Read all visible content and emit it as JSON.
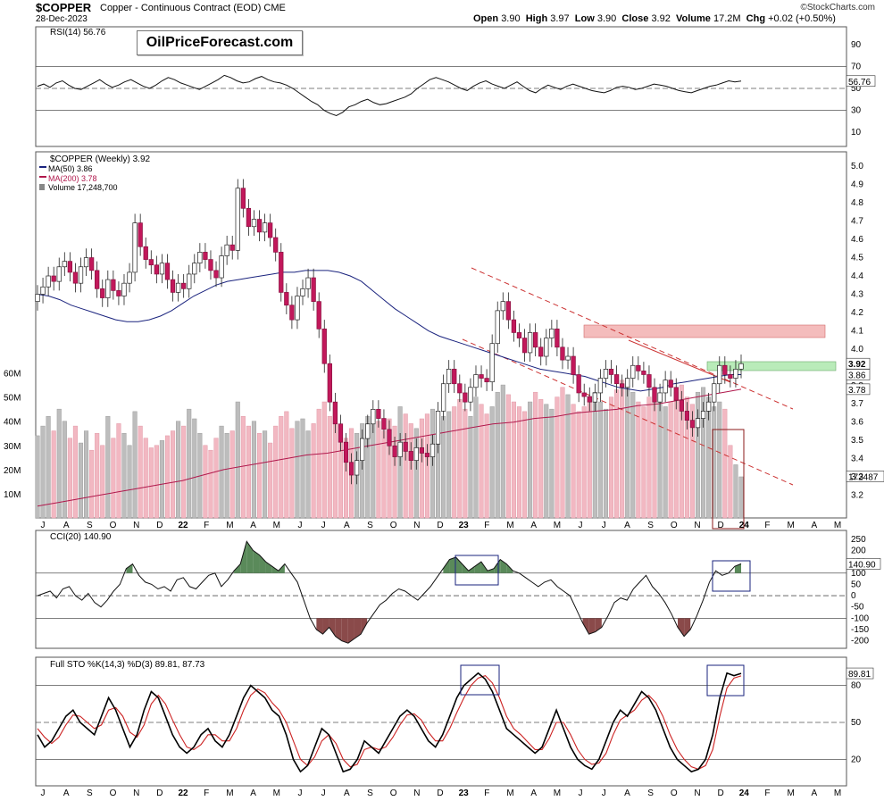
{
  "header": {
    "symbol": "$COPPER",
    "subtitle": "Copper - Continuous Contract (EOD)",
    "exchange": "CME",
    "date": "28-Dec-2023",
    "open_label": "Open",
    "open": "3.90",
    "high_label": "High",
    "high": "3.97",
    "low_label": "Low",
    "low": "3.90",
    "close_label": "Close",
    "close": "3.92",
    "volume_label": "Volume",
    "volume": "17.2M",
    "chg_label": "Chg",
    "chg": "+0.02 (+0.50%)",
    "brand": "©StockCharts.com"
  },
  "watermark": "OilPriceForecast.com",
  "colors": {
    "up": "#ffffff",
    "down": "#c2185b",
    "ma50": "#1a237e",
    "ma200": "#b0184c",
    "vol_up": "#bdbdbd",
    "vol_down": "#f2b8c2",
    "resistance_zone": "#f0a0a0",
    "support_zone": "#a8e6a8",
    "cci_up": "#5a8a5a",
    "cci_down": "#8a4a4a",
    "sto_d": "#cc2222"
  },
  "chart_data": [
    {
      "type": "line",
      "name": "rsi_panel",
      "label": "RSI(14) 56.76",
      "current": "56.76",
      "levels": [
        70,
        50,
        30
      ],
      "ylim": [
        0,
        100
      ],
      "y_ticks": [
        "90",
        "70",
        "50",
        "30",
        "10"
      ],
      "values": [
        52,
        54,
        51,
        55,
        57,
        53,
        50,
        49,
        52,
        55,
        58,
        54,
        51,
        53,
        56,
        58,
        55,
        52,
        50,
        53,
        57,
        60,
        58,
        55,
        53,
        51,
        49,
        52,
        55,
        58,
        62,
        60,
        57,
        55,
        56,
        59,
        61,
        58,
        56,
        55,
        53,
        50,
        46,
        42,
        38,
        35,
        30,
        27,
        25,
        28,
        33,
        35,
        38,
        40,
        37,
        35,
        36,
        38,
        40,
        42,
        45,
        50,
        54,
        58,
        60,
        58,
        56,
        53,
        50,
        48,
        52,
        55,
        57,
        54,
        52,
        50,
        53,
        56,
        52,
        48,
        46,
        50,
        53,
        51,
        49,
        52,
        54,
        52,
        50,
        48,
        47,
        46,
        48,
        51,
        52,
        51,
        49,
        50,
        52,
        54,
        53,
        52,
        50,
        48,
        47,
        46,
        48,
        50,
        52,
        53,
        55,
        57,
        56,
        56.76
      ]
    },
    {
      "type": "candlestick",
      "name": "price_panel",
      "title": "$COPPER (Weekly) 3.92",
      "legend": [
        {
          "label": "MA(50) 3.86",
          "color": "#1a237e"
        },
        {
          "label": "MA(200) 3.78",
          "color": "#b0184c"
        },
        {
          "label": "Volume 17,248,700",
          "color": "#888888"
        }
      ],
      "ylim": [
        3.1,
        5.05
      ],
      "y_ticks": [
        "5.0",
        "4.9",
        "4.8",
        "4.7",
        "4.6",
        "4.5",
        "4.4",
        "4.3",
        "4.2",
        "4.1",
        "4.0",
        "3.9",
        "3.8",
        "3.7",
        "3.6",
        "3.5",
        "3.4",
        "3.3",
        "3.2"
      ],
      "price_tags": [
        {
          "label": "3.92",
          "value": 3.92,
          "bold": true
        },
        {
          "label": "3.86",
          "value": 3.86,
          "bold": false
        },
        {
          "label": "3.78",
          "value": 3.78,
          "bold": false
        }
      ],
      "volume_axis_ticks": [
        "60M",
        "50M",
        "40M",
        "30M",
        "20M",
        "10M"
      ],
      "volume_tag": "172487",
      "volume_ymax": 65,
      "x_labels": [
        "J",
        "A",
        "S",
        "O",
        "N",
        "D",
        "22",
        "F",
        "M",
        "A",
        "M",
        "J",
        "J",
        "A",
        "S",
        "O",
        "N",
        "D",
        "23",
        "F",
        "M",
        "A",
        "M",
        "J",
        "J",
        "A",
        "S",
        "O",
        "N",
        "D",
        "24",
        "F",
        "M",
        "A",
        "M"
      ],
      "closes": [
        4.3,
        4.34,
        4.4,
        4.37,
        4.45,
        4.48,
        4.42,
        4.36,
        4.45,
        4.5,
        4.43,
        4.33,
        4.28,
        4.38,
        4.32,
        4.29,
        4.36,
        4.42,
        4.69,
        4.56,
        4.49,
        4.46,
        4.41,
        4.47,
        4.38,
        4.31,
        4.36,
        4.33,
        4.41,
        4.47,
        4.53,
        4.49,
        4.43,
        4.39,
        4.51,
        4.57,
        4.54,
        4.88,
        4.77,
        4.67,
        4.71,
        4.64,
        4.69,
        4.61,
        4.53,
        4.31,
        4.24,
        4.16,
        4.29,
        4.33,
        4.39,
        4.26,
        4.11,
        3.92,
        3.71,
        3.59,
        3.49,
        3.38,
        3.31,
        3.39,
        3.51,
        3.59,
        3.67,
        3.62,
        3.56,
        3.47,
        3.41,
        3.49,
        3.44,
        3.39,
        3.46,
        3.43,
        3.41,
        3.48,
        3.66,
        3.81,
        3.89,
        3.81,
        3.76,
        3.71,
        3.79,
        3.86,
        3.84,
        3.82,
        4.03,
        4.21,
        4.26,
        4.16,
        4.09,
        4.06,
        3.98,
        4.09,
        4.01,
        3.96,
        4.06,
        4.11,
        4.01,
        3.94,
        3.96,
        3.86,
        3.76,
        3.74,
        3.71,
        3.76,
        3.84,
        3.89,
        3.86,
        3.81,
        3.79,
        3.84,
        3.91,
        3.88,
        3.86,
        3.79,
        3.71,
        3.76,
        3.83,
        3.79,
        3.72,
        3.66,
        3.61,
        3.57,
        3.62,
        3.66,
        3.71,
        3.81,
        3.91,
        3.86,
        3.84,
        3.89,
        3.92
      ],
      "ma50": [
        4.3,
        4.29,
        4.27,
        4.24,
        4.22,
        4.2,
        4.18,
        4.16,
        4.15,
        4.15,
        4.16,
        4.18,
        4.21,
        4.25,
        4.29,
        4.32,
        4.35,
        4.37,
        4.38,
        4.39,
        4.4,
        4.41,
        4.42,
        4.42,
        4.43,
        4.43,
        4.43,
        4.42,
        4.4,
        4.37,
        4.32,
        4.27,
        4.22,
        4.18,
        4.14,
        4.1,
        4.07,
        4.05,
        4.03,
        4.01,
        3.99,
        3.97,
        3.95,
        3.93,
        3.91,
        3.89,
        3.88,
        3.87,
        3.86,
        3.85,
        3.83,
        3.81,
        3.79,
        3.78,
        3.77,
        3.78,
        3.79,
        3.81,
        3.82,
        3.83,
        3.84,
        3.85,
        3.86,
        3.86
      ],
      "ma200": [
        3.14,
        3.16,
        3.18,
        3.2,
        3.22,
        3.24,
        3.26,
        3.28,
        3.31,
        3.34,
        3.36,
        3.38,
        3.4,
        3.42,
        3.43,
        3.45,
        3.47,
        3.49,
        3.51,
        3.53,
        3.55,
        3.57,
        3.59,
        3.6,
        3.62,
        3.63,
        3.65,
        3.66,
        3.67,
        3.69,
        3.7,
        3.72,
        3.74,
        3.76,
        3.78
      ],
      "volume": [
        34,
        38,
        42,
        36,
        45,
        40,
        33,
        38,
        31,
        36,
        28,
        35,
        30,
        42,
        33,
        39,
        35,
        30,
        44,
        38,
        33,
        29,
        30,
        32,
        34,
        36,
        40,
        38,
        45,
        41,
        35,
        30,
        28,
        33,
        38,
        35,
        36,
        48,
        42,
        38,
        40,
        35,
        36,
        31,
        38,
        42,
        44,
        37,
        40,
        41,
        36,
        39,
        45,
        48,
        42,
        46,
        38,
        33,
        37,
        35,
        39,
        42,
        44,
        40,
        36,
        41,
        38,
        46,
        43,
        39,
        37,
        41,
        43,
        45,
        40,
        42,
        44,
        46,
        49,
        45,
        42,
        50,
        47,
        43,
        46,
        52,
        55,
        51,
        48,
        46,
        44,
        48,
        52,
        49,
        47,
        45,
        50,
        54,
        51,
        47,
        44,
        46,
        49,
        52,
        48,
        45,
        50,
        53,
        57,
        55,
        52,
        48,
        46,
        50,
        53,
        49,
        46,
        48,
        52,
        55,
        50,
        47,
        52,
        54,
        50,
        46,
        48,
        45,
        30,
        22,
        17
      ]
    },
    {
      "type": "line",
      "name": "cci_panel",
      "label": "CCI(20) 140.90",
      "current": "140.90",
      "ylim": [
        -225,
        265
      ],
      "y_ticks": [
        "250",
        "200",
        "150",
        "100",
        "50",
        "0",
        "-50",
        "-100",
        "-150",
        "-200"
      ],
      "values": [
        0,
        10,
        20,
        -10,
        30,
        40,
        0,
        -20,
        10,
        -30,
        -50,
        -20,
        20,
        50,
        120,
        140,
        90,
        60,
        50,
        30,
        40,
        20,
        70,
        80,
        40,
        30,
        60,
        90,
        100,
        40,
        70,
        110,
        140,
        240,
        200,
        180,
        150,
        130,
        110,
        140,
        100,
        60,
        -20,
        -100,
        -150,
        -170,
        -140,
        -180,
        -200,
        -210,
        -190,
        -170,
        -120,
        -80,
        -40,
        -20,
        10,
        30,
        20,
        0,
        -20,
        10,
        40,
        80,
        120,
        160,
        170,
        140,
        110,
        130,
        150,
        110,
        120,
        160,
        140,
        110,
        100,
        80,
        60,
        40,
        60,
        70,
        40,
        20,
        0,
        -60,
        -120,
        -170,
        -160,
        -140,
        -90,
        -30,
        -10,
        -20,
        30,
        60,
        90,
        40,
        10,
        -30,
        -80,
        -140,
        -180,
        -150,
        -90,
        -20,
        60,
        110,
        90,
        100,
        130,
        141
      ]
    },
    {
      "type": "line",
      "name": "sto_panel",
      "label": "Full STO %K(14,3) %D(3) 89.81, 87.73",
      "k_current": "89.81",
      "d_current": "87.73",
      "ylim": [
        0,
        100
      ],
      "y_ticks": [
        "80",
        "50",
        "20"
      ],
      "k": [
        40,
        30,
        35,
        45,
        55,
        60,
        50,
        45,
        40,
        55,
        70,
        60,
        45,
        30,
        40,
        60,
        75,
        70,
        55,
        40,
        30,
        25,
        30,
        40,
        45,
        35,
        30,
        40,
        55,
        70,
        80,
        75,
        70,
        60,
        55,
        40,
        20,
        10,
        15,
        30,
        45,
        40,
        25,
        10,
        12,
        20,
        35,
        30,
        25,
        35,
        45,
        55,
        60,
        55,
        45,
        35,
        30,
        40,
        55,
        70,
        80,
        85,
        90,
        85,
        75,
        60,
        45,
        40,
        35,
        30,
        25,
        30,
        45,
        60,
        45,
        30,
        20,
        15,
        12,
        20,
        35,
        50,
        60,
        55,
        65,
        75,
        70,
        60,
        45,
        30,
        20,
        15,
        10,
        12,
        20,
        40,
        70,
        90,
        88,
        89.81
      ],
      "d": [
        45,
        38,
        33,
        38,
        48,
        56,
        55,
        50,
        45,
        48,
        60,
        62,
        55,
        42,
        38,
        48,
        65,
        72,
        65,
        52,
        40,
        30,
        28,
        32,
        40,
        40,
        35,
        35,
        45,
        60,
        72,
        77,
        74,
        66,
        60,
        50,
        35,
        20,
        15,
        22,
        35,
        40,
        33,
        20,
        14,
        16,
        28,
        30,
        28,
        30,
        38,
        48,
        56,
        57,
        52,
        42,
        35,
        35,
        45,
        58,
        70,
        80,
        86,
        88,
        82,
        70,
        55,
        45,
        40,
        34,
        28,
        28,
        37,
        50,
        50,
        40,
        28,
        20,
        16,
        17,
        25,
        40,
        52,
        56,
        60,
        68,
        72,
        66,
        55,
        40,
        28,
        20,
        14,
        12,
        15,
        28,
        55,
        78,
        86,
        87.73
      ]
    }
  ]
}
